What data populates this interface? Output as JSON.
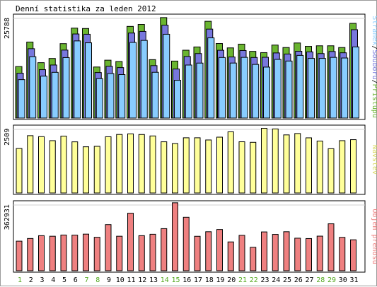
{
  "chart_data": {
    "type": "bar",
    "title": "Denní statistika za leden 2012",
    "categories": [
      "1",
      "2",
      "3",
      "4",
      "5",
      "6",
      "7",
      "8",
      "9",
      "10",
      "11",
      "12",
      "13",
      "14",
      "15",
      "16",
      "17",
      "18",
      "19",
      "20",
      "21",
      "22",
      "23",
      "24",
      "25",
      "26",
      "27",
      "28",
      "29",
      "30",
      "31"
    ],
    "weekend_days": [
      "1",
      "7",
      "8",
      "14",
      "15",
      "21",
      "22",
      "28",
      "29"
    ],
    "panels": [
      {
        "id": "hits",
        "ymax_label": "25788",
        "ymax": 25788,
        "right_label_parts": [
          "Stránek",
          "/",
          "Souborů",
          "/",
          "Přístupů"
        ],
        "series": [
          {
            "name": "Přístupů",
            "color": "#6ab530",
            "values": [
              13230,
              19530,
              14230,
              15310,
              19120,
              23100,
              23010,
              13120,
              14870,
              14530,
              23550,
              24060,
              15010,
              25810,
              14640,
              17430,
              18270,
              24860,
              19150,
              18030,
              18990,
              17130,
              16810,
              18750,
              18120,
              19290,
              18420,
              18570,
              18570,
              18120,
              24330
            ]
          },
          {
            "name": "Souborů",
            "color": "#7777dd",
            "values": [
              11520,
              17820,
              12430,
              13630,
              17460,
              21600,
              21530,
              11690,
              13290,
              12960,
              21840,
              22260,
              13470,
              23860,
              12600,
              15820,
              16570,
              22850,
              17410,
              15690,
              17350,
              15560,
              15610,
              16730,
              16450,
              17160,
              17000,
              16570,
              17100,
              16770,
              22700
            ]
          },
          {
            "name": "Stránek",
            "color": "#88ccff",
            "values": [
              9870,
              15760,
              10770,
              11750,
              15540,
              19820,
              19330,
              10130,
              11440,
              11170,
              19430,
              19950,
              11760,
              21530,
              9700,
              13620,
              14120,
              20600,
              15560,
              14130,
              15590,
              13780,
              13090,
              15070,
              14650,
              16100,
              15330,
              15330,
              15590,
              15430,
              18280
            ]
          }
        ]
      },
      {
        "id": "visits",
        "ymax_label": "2509",
        "ymax": 2509,
        "right_label_parts": [
          "Návštěv"
        ],
        "series": [
          {
            "name": "Návštěv",
            "color": "#ffff99",
            "values": [
              1735,
              2236,
              2198,
              2041,
              2218,
              1995,
              1802,
              1820,
              2193,
              2283,
              2306,
              2281,
              2225,
              1997,
              1927,
              2153,
              2153,
              2068,
              2178,
              2385,
              1998,
              1977,
              2521,
              2499,
              2266,
              2319,
              2151,
              2024,
              1727,
              2041,
              2080
            ]
          }
        ]
      },
      {
        "id": "transfer",
        "ymax_label": "362931",
        "ymax": 362931,
        "right_label_parts": [
          "Objem přenosu"
        ],
        "series": [
          {
            "name": "Objem přenosu",
            "color": "#ef8080",
            "values": [
              161680,
              176230,
              191630,
              188560,
              195080,
              194560,
              200030,
              182850,
              252080,
              188560,
              314280,
              191630,
              199310,
              230040,
              371240,
              292210,
              188230,
              213050,
              225330,
              157460,
              193440,
              127960,
              212020,
              198570,
              213050,
              177820,
              175860,
              189070,
              256430,
              182330,
              169090
            ]
          }
        ]
      }
    ]
  }
}
